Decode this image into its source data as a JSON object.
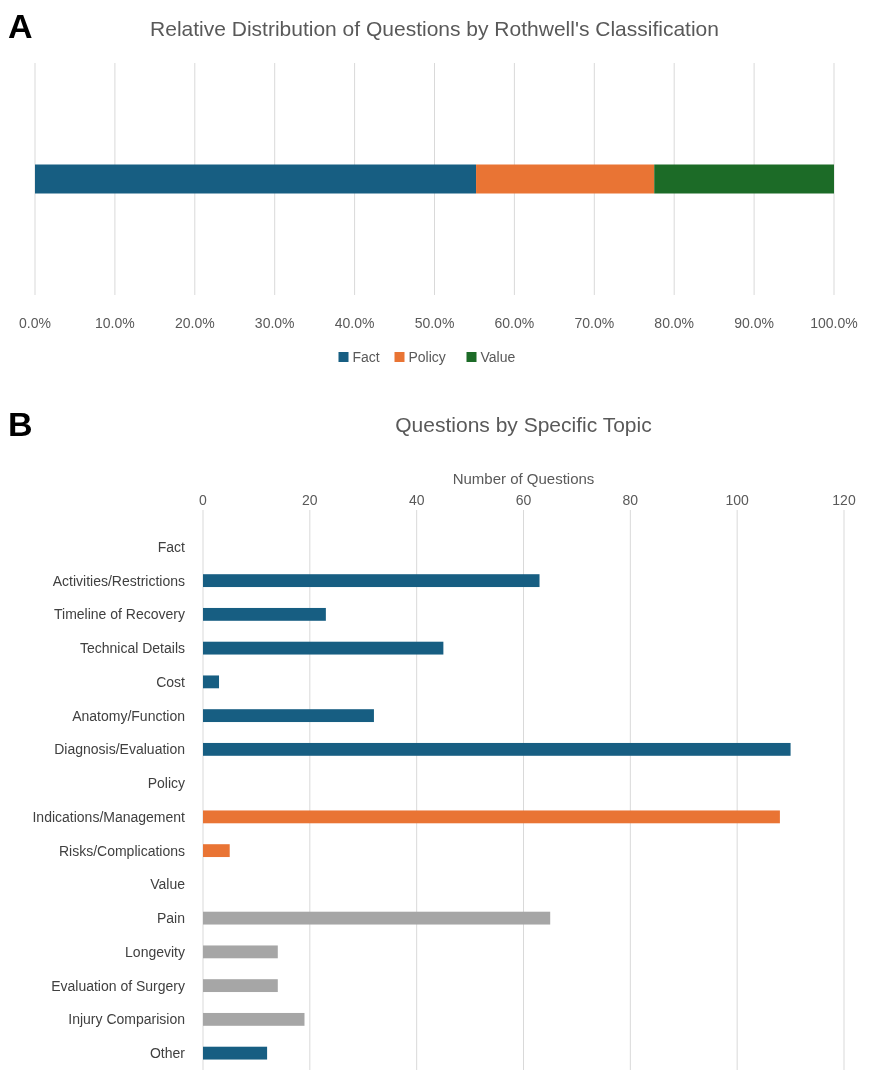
{
  "chart_data": [
    {
      "type": "bar",
      "title": "Relative Distribution of Questions by Rothwell's Classification",
      "orientation": "horizontal",
      "stacked": true,
      "categories": [
        null
      ],
      "series": [
        {
          "name": "Fact",
          "color": "#175e82",
          "values": [
            55.2
          ]
        },
        {
          "name": "Policy",
          "color": "#e97434",
          "values": [
            22.3
          ]
        },
        {
          "name": "Value",
          "color": "#1c6b27",
          "values": [
            22.5
          ]
        }
      ],
      "xlim": [
        0,
        100
      ],
      "xticks": [
        {
          "value": 0,
          "label": "0.0%"
        },
        {
          "value": 10,
          "label": "10.0%"
        },
        {
          "value": 20,
          "label": "20.0%"
        },
        {
          "value": 30,
          "label": "30.0%"
        },
        {
          "value": 40,
          "label": "40.0%"
        },
        {
          "value": 50,
          "label": "50.0%"
        },
        {
          "value": 60,
          "label": "60.0%"
        },
        {
          "value": 70,
          "label": "70.0%"
        },
        {
          "value": 80,
          "label": "80.0%"
        },
        {
          "value": 90,
          "label": "90.0%"
        },
        {
          "value": 100,
          "label": "100.0%"
        }
      ],
      "grid": "x",
      "legend": "bottom",
      "annotations": [
        "A"
      ]
    },
    {
      "type": "bar",
      "title": "Questions by Specific Topic",
      "xlabel": "Number of Questions",
      "orientation": "horizontal",
      "categories": [
        "Fact",
        "Activities/Restrictions",
        "Timeline of Recovery",
        "Technical Details",
        "Cost",
        "Anatomy/Function",
        "Diagnosis/Evaluation",
        "Policy",
        "Indications/Management",
        "Risks/Complications",
        "Value",
        "Pain",
        "Longevity",
        "Evaluation of Surgery",
        "Injury Comparision",
        "Other"
      ],
      "values": [
        null,
        63,
        23,
        45,
        3,
        32,
        110,
        null,
        108,
        5,
        null,
        65,
        14,
        14,
        19,
        12
      ],
      "colors": [
        null,
        "#175e82",
        "#175e82",
        "#175e82",
        "#175e82",
        "#175e82",
        "#175e82",
        null,
        "#e97434",
        "#e97434",
        null,
        "#a6a6a6",
        "#a6a6a6",
        "#a6a6a6",
        "#a6a6a6",
        "#175e82"
      ],
      "xlim": [
        0,
        120
      ],
      "xticks": [
        0,
        20,
        40,
        60,
        80,
        100,
        120
      ],
      "grid": "x",
      "annotations": [
        "B"
      ]
    }
  ]
}
